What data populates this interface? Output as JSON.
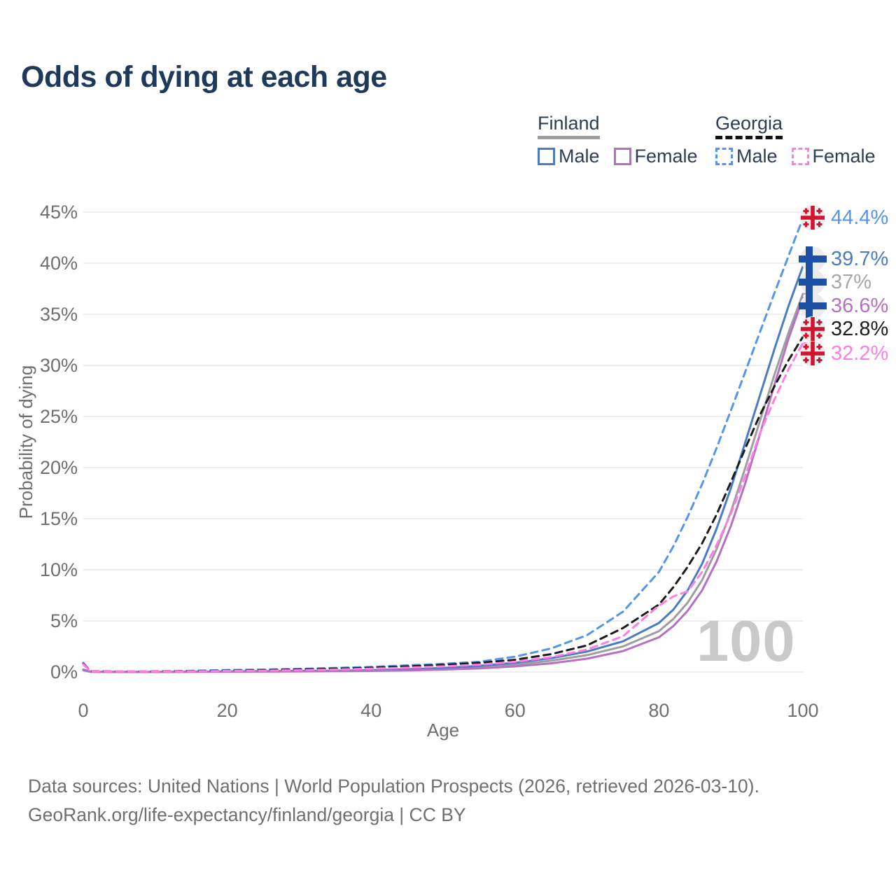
{
  "title": "Odds of dying at each age",
  "legend": {
    "finland": {
      "label": "Finland",
      "male": "Male",
      "female": "Female"
    },
    "georgia": {
      "label": "Georgia",
      "male": "Male",
      "female": "Female"
    }
  },
  "watermark": "100",
  "footer": {
    "line1": "Data sources: United Nations | World Population Prospects (2026, retrieved 2026-03-10).",
    "line2": "GeoRank.org/life-expectancy/finland/georgia | CC BY"
  },
  "colors": {
    "finland_male": "#4a7cc2",
    "finland_female": "#b670c2",
    "finland_both": "#9e9e9e",
    "georgia_male": "#5596ea",
    "georgia_female": "#ff7ee6",
    "georgia_both": "#1c1c1c",
    "finland_flag_blue": "#1b52a5",
    "georgia_flag_red": "#d3142f",
    "title_navy": "#1e3a5a",
    "axis_gray": "#6f6f6f",
    "gridline": "#e9e9e9",
    "watermark_gray": "#c9c9c9"
  },
  "chart_data": {
    "type": "line",
    "title": "Odds of dying at each age",
    "xlabel": "Age",
    "ylabel": "Probability of dying",
    "xlim": [
      0,
      100
    ],
    "ylim": [
      0,
      45
    ],
    "grid": "horizontal-only",
    "legend_position": "top-right",
    "x": [
      0,
      1,
      5,
      10,
      15,
      20,
      25,
      30,
      35,
      40,
      45,
      50,
      55,
      60,
      65,
      70,
      75,
      80,
      82,
      84,
      86,
      88,
      90,
      92,
      94,
      96,
      98,
      100
    ],
    "series": [
      {
        "id": "finland_both",
        "name": "Finland (both sexes)",
        "country": "Finland",
        "sex": "Both",
        "color": "#9e9e9e",
        "style": "solid",
        "values": [
          0.2,
          0.03,
          0.01,
          0.01,
          0.03,
          0.05,
          0.07,
          0.08,
          0.11,
          0.14,
          0.21,
          0.31,
          0.47,
          0.72,
          1.1,
          1.65,
          2.5,
          4.0,
          5.2,
          6.8,
          9.0,
          12.0,
          15.7,
          20.0,
          24.5,
          29.0,
          33.2,
          37.0
        ]
      },
      {
        "id": "finland_male",
        "name": "Finland Male",
        "country": "Finland",
        "sex": "Male",
        "color": "#4a7cc2",
        "style": "solid",
        "values": [
          0.23,
          0.03,
          0.01,
          0.01,
          0.03,
          0.06,
          0.08,
          0.1,
          0.13,
          0.18,
          0.27,
          0.4,
          0.6,
          0.9,
          1.35,
          2.0,
          3.0,
          4.8,
          6.1,
          8.0,
          10.6,
          14.0,
          18.0,
          22.5,
          27.0,
          31.5,
          35.8,
          39.7
        ]
      },
      {
        "id": "finland_female",
        "name": "Finland Female",
        "country": "Finland",
        "sex": "Female",
        "color": "#b670c2",
        "style": "solid",
        "values": [
          0.17,
          0.02,
          0.01,
          0.01,
          0.02,
          0.03,
          0.04,
          0.06,
          0.08,
          0.1,
          0.15,
          0.23,
          0.35,
          0.55,
          0.85,
          1.3,
          2.05,
          3.4,
          4.5,
          6.0,
          8.0,
          10.8,
          14.3,
          18.5,
          23.2,
          28.0,
          32.6,
          36.6
        ]
      },
      {
        "id": "georgia_male",
        "name": "Georgia Male",
        "country": "Georgia",
        "sex": "Male",
        "color": "#5596ea",
        "style": "dashed",
        "values": [
          0.9,
          0.08,
          0.05,
          0.06,
          0.12,
          0.2,
          0.25,
          0.3,
          0.4,
          0.5,
          0.65,
          0.8,
          1.0,
          1.5,
          2.3,
          3.6,
          5.9,
          9.8,
          12.3,
          15.2,
          18.4,
          21.9,
          25.6,
          29.4,
          33.2,
          37.0,
          40.7,
          44.4
        ]
      },
      {
        "id": "georgia_both",
        "name": "Georgia (both sexes)",
        "country": "Georgia",
        "sex": "Both",
        "color": "#1c1c1c",
        "style": "dashed",
        "values": [
          0.8,
          0.07,
          0.04,
          0.05,
          0.09,
          0.13,
          0.18,
          0.25,
          0.33,
          0.42,
          0.55,
          0.7,
          0.9,
          1.2,
          1.75,
          2.6,
          4.3,
          6.6,
          8.3,
          10.3,
          12.6,
          15.4,
          18.6,
          21.9,
          25.1,
          27.9,
          30.5,
          32.8
        ]
      },
      {
        "id": "georgia_female",
        "name": "Georgia Female",
        "country": "Georgia",
        "sex": "Female",
        "color": "#ff7ee6",
        "style": "dashed",
        "values": [
          0.75,
          0.06,
          0.04,
          0.04,
          0.07,
          0.1,
          0.13,
          0.18,
          0.24,
          0.32,
          0.42,
          0.55,
          0.72,
          1.0,
          1.45,
          2.2,
          3.5,
          6.5,
          7.4,
          7.9,
          9.8,
          12.4,
          15.5,
          19.2,
          23.3,
          26.6,
          29.6,
          32.2
        ]
      }
    ],
    "xticks": [
      {
        "value": 0,
        "label": "0"
      },
      {
        "value": 20,
        "label": "20"
      },
      {
        "value": 40,
        "label": "40"
      },
      {
        "value": 60,
        "label": "60"
      },
      {
        "value": 80,
        "label": "80"
      },
      {
        "value": 100,
        "label": "100"
      }
    ],
    "yticks": [
      {
        "value": 0,
        "label": "0%"
      },
      {
        "value": 5,
        "label": "5%"
      },
      {
        "value": 10,
        "label": "10%"
      },
      {
        "value": 15,
        "label": "15%"
      },
      {
        "value": 20,
        "label": "20%"
      },
      {
        "value": 25,
        "label": "25%"
      },
      {
        "value": 30,
        "label": "30%"
      },
      {
        "value": 35,
        "label": "35%"
      },
      {
        "value": 40,
        "label": "40%"
      },
      {
        "value": 45,
        "label": "45%"
      }
    ],
    "end_labels": [
      {
        "series": "georgia_male",
        "text": "44.4%",
        "value": 44.4,
        "flag": "georgia",
        "color": "#5596ea"
      },
      {
        "series": "finland_male",
        "text": "39.7%",
        "value": 39.7,
        "flag": "finland",
        "color": "#4a7cc2"
      },
      {
        "series": "finland_both",
        "text": "37%",
        "value": 37.0,
        "flag": "finland",
        "color": "#a7a7a7"
      },
      {
        "series": "finland_female",
        "text": "36.6%",
        "value": 36.6,
        "flag": "finland",
        "color": "#b670c2"
      },
      {
        "series": "georgia_both",
        "text": "32.8%",
        "value": 32.8,
        "flag": "georgia",
        "color": "#1c1c1c"
      },
      {
        "series": "georgia_female",
        "text": "32.2%",
        "value": 32.2,
        "flag": "georgia",
        "color": "#ff7ee6"
      }
    ]
  }
}
